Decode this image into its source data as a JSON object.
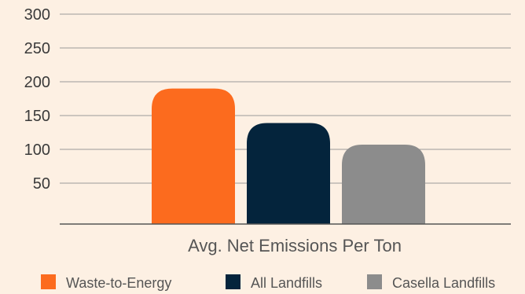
{
  "chart_data": {
    "type": "bar",
    "title": "",
    "xlabel": "",
    "ylabel": "",
    "categories": [
      "Avg. Net Emissions Per Ton"
    ],
    "series": [
      {
        "name": "Waste-to-Energy",
        "values": [
          190
        ],
        "color": "#fc6b1e"
      },
      {
        "name": "All Landfills",
        "values": [
          139
        ],
        "color": "#04243c"
      },
      {
        "name": "Casella Landfills",
        "values": [
          107
        ],
        "color": "#8c8c8c"
      }
    ],
    "yticks": [
      50,
      100,
      150,
      200,
      250,
      300
    ],
    "ylim": [
      0,
      300
    ],
    "grid": true,
    "legend_position": "bottom"
  },
  "colors": {
    "background": "#fdf0e3",
    "gridline": "#9a9a9a",
    "axis": "#555555"
  }
}
